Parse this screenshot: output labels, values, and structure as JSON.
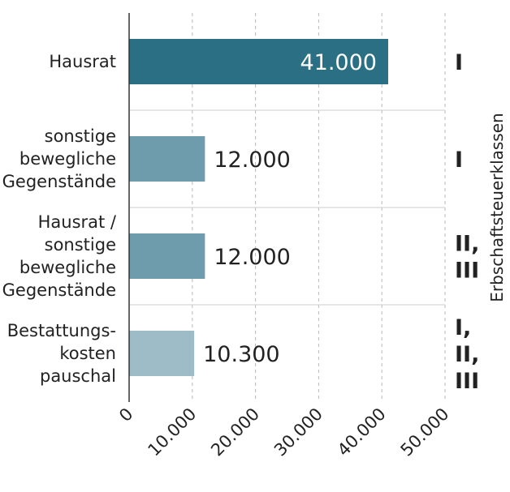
{
  "chart_data": {
    "type": "bar",
    "orientation": "horizontal",
    "categories": [
      [
        "Hausrat"
      ],
      [
        "sonstige",
        "bewegliche",
        "Gegenstände"
      ],
      [
        "Hausrat /",
        "sonstige",
        "bewegliche",
        "Gegenstände"
      ],
      [
        "Bestattungs-",
        "kosten",
        "pauschal"
      ]
    ],
    "values": [
      41000,
      12000,
      12000,
      10300
    ],
    "value_labels": [
      "41.000",
      "12.000",
      "12.000",
      "10.300"
    ],
    "bar_colors": [
      "#2b6f85",
      "#6e9cad",
      "#6e9cad",
      "#9dbcc7"
    ],
    "tax_classes": [
      [
        "I"
      ],
      [
        "I"
      ],
      [
        "II,",
        "III"
      ],
      [
        "I,",
        "II,",
        "III"
      ]
    ],
    "secondary_axis_title": "Erbschaftsteuerklassen",
    "xlim": [
      0,
      50000
    ],
    "x_ticks": [
      0,
      10000,
      20000,
      30000,
      40000,
      50000
    ],
    "x_tick_labels": [
      "0",
      "10.000",
      "20.000",
      "30.000",
      "40.000",
      "50.000"
    ],
    "grid": "vertical dashed",
    "legend": "none"
  }
}
